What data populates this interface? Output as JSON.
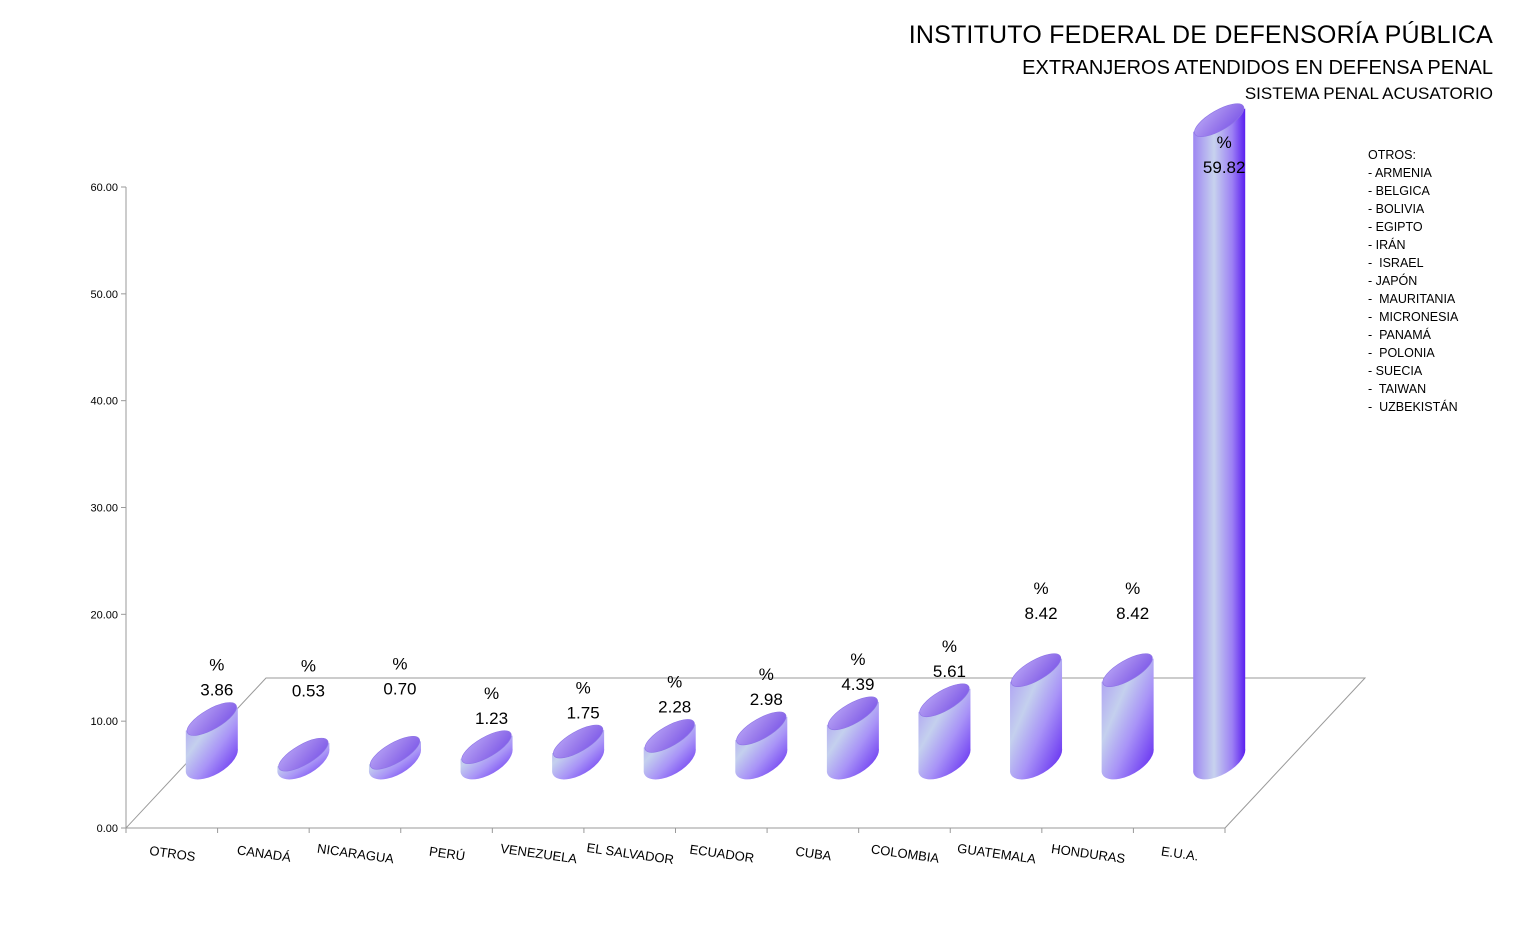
{
  "header": {
    "title": "INSTITUTO FEDERAL DE DEFENSORÍA PÚBLICA",
    "subtitle": "EXTRANJEROS ATENDIDOS EN DEFENSA PENAL",
    "subtitle2": "SISTEMA PENAL ACUSATORIO"
  },
  "otros_note": {
    "heading": "OTROS:",
    "items": [
      "- ARMENIA",
      "- BELGICA",
      "- BOLIVIA",
      "- EGIPTO",
      "- IRÁN",
      "-  ISRAEL",
      "- JAPÓN",
      "-  MAURITANIA",
      "-  MICRONESIA",
      "-  PANAMÁ",
      "-  POLONIA",
      "- SUECIA",
      "-  TAIWAN",
      "-  UZBEKISTÁN"
    ]
  },
  "chart_data": {
    "type": "bar",
    "title": "INSTITUTO FEDERAL DE DEFENSORÍA PÚBLICA",
    "categories": [
      "OTROS",
      "CANADÁ",
      "NICARAGUA",
      "PERÚ",
      "VENEZUELA",
      "EL SALVADOR",
      "ECUADOR",
      "CUBA",
      "COLOMBIA",
      "GUATEMALA",
      "HONDURAS",
      "E.U.A."
    ],
    "values": [
      3.86,
      0.53,
      0.7,
      1.23,
      1.75,
      2.28,
      2.98,
      4.39,
      5.61,
      8.42,
      8.42,
      59.82
    ],
    "data_labels": [
      "3.86",
      "0.53",
      "0.70",
      "1.23",
      "1.75",
      "2.28",
      "2.98",
      "4.39",
      "5.61",
      "8.42",
      "8.42",
      "59.82"
    ],
    "data_label_prefix": "%",
    "yticks": [
      "0.00",
      "10.00",
      "20.00",
      "30.00",
      "40.00",
      "50.00",
      "60.00"
    ],
    "ylim": [
      0,
      60
    ],
    "xlabel": "",
    "ylabel": "",
    "grid": false,
    "bar_color": "#7b5cf0",
    "bar_highlight": "#c9d4ee"
  }
}
